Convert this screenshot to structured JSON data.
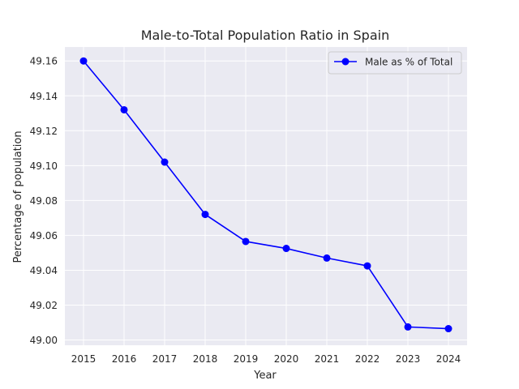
{
  "chart_data": {
    "type": "line",
    "title": "Male-to-Total Population Ratio in Spain",
    "xlabel": "Year",
    "ylabel": "Percentage of population",
    "x": [
      "2015",
      "2016",
      "2017",
      "2018",
      "2019",
      "2020",
      "2021",
      "2022",
      "2023",
      "2024"
    ],
    "series": [
      {
        "name": "Male as % of Total",
        "color": "#0000ff",
        "values": [
          49.16,
          49.132,
          49.102,
          49.072,
          49.0565,
          49.0525,
          49.047,
          49.0425,
          49.0075,
          49.0065
        ]
      }
    ],
    "ylim": [
      48.997,
      49.168
    ],
    "yticks": [
      "49.00",
      "49.02",
      "49.04",
      "49.06",
      "49.08",
      "49.10",
      "49.12",
      "49.14",
      "49.16"
    ],
    "grid": true,
    "legend_position": "top-right",
    "background_color": "#eaeaf2",
    "grid_color": "#ffffff"
  }
}
